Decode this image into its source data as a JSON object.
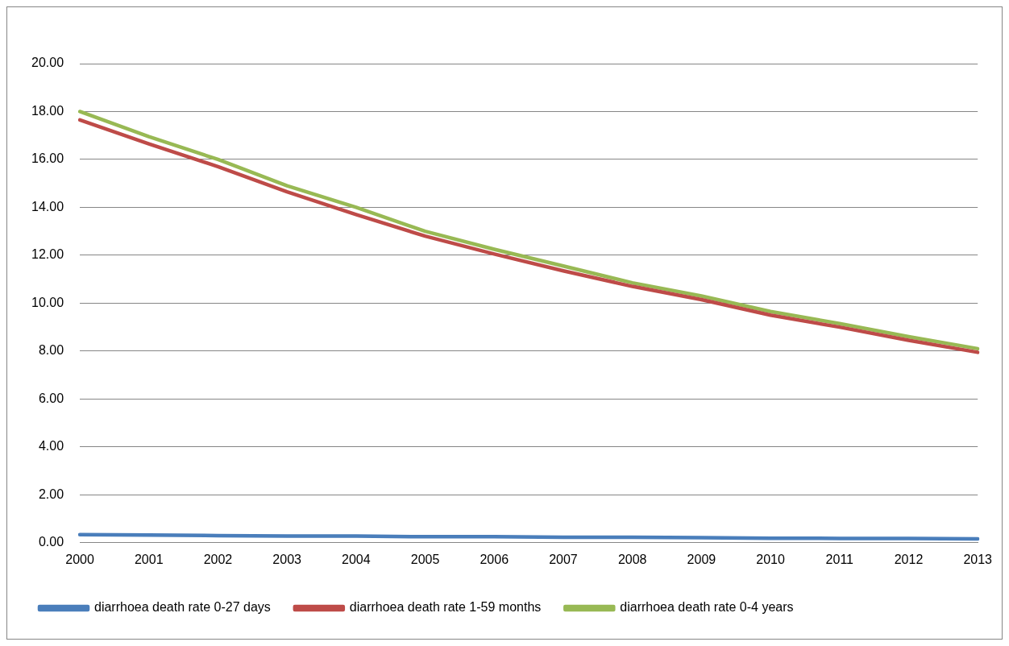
{
  "chart_data": {
    "type": "line",
    "categories": [
      "2000",
      "2001",
      "2002",
      "2003",
      "2004",
      "2005",
      "2006",
      "2007",
      "2008",
      "2009",
      "2010",
      "2011",
      "2012",
      "2013"
    ],
    "series": [
      {
        "name": "diarrhoea death rate 0-27 days",
        "color": "#4a7ebb",
        "values": [
          0.34,
          0.32,
          0.3,
          0.28,
          0.28,
          0.25,
          0.25,
          0.23,
          0.23,
          0.21,
          0.19,
          0.18,
          0.18,
          0.16
        ]
      },
      {
        "name": "diarrhoea death rate 1-59 months",
        "color": "#be4b48",
        "values": [
          17.65,
          16.65,
          15.7,
          14.65,
          13.7,
          12.8,
          12.05,
          11.35,
          10.7,
          10.15,
          9.5,
          9.0,
          8.45,
          7.95
        ]
      },
      {
        "name": "diarrhoea death rate 0-4 years",
        "color": "#98b954",
        "values": [
          18.0,
          16.95,
          16.0,
          14.9,
          14.0,
          13.0,
          12.25,
          11.55,
          10.85,
          10.3,
          9.65,
          9.15,
          8.6,
          8.1
        ]
      }
    ],
    "ylim": [
      0,
      20
    ],
    "yticks": [
      {
        "value": 0,
        "label": "0.00"
      },
      {
        "value": 2,
        "label": "2.00"
      },
      {
        "value": 4,
        "label": "4.00"
      },
      {
        "value": 6,
        "label": "6.00"
      },
      {
        "value": 8,
        "label": "8.00"
      },
      {
        "value": 10,
        "label": "10.00"
      },
      {
        "value": 12,
        "label": "12.00"
      },
      {
        "value": 14,
        "label": "14.00"
      },
      {
        "value": 16,
        "label": "16.00"
      },
      {
        "value": 18,
        "label": "18.00"
      },
      {
        "value": 20,
        "label": "20.00"
      }
    ],
    "grid": "y",
    "legend": "bottom",
    "marker": "none",
    "line_style": "solid"
  }
}
